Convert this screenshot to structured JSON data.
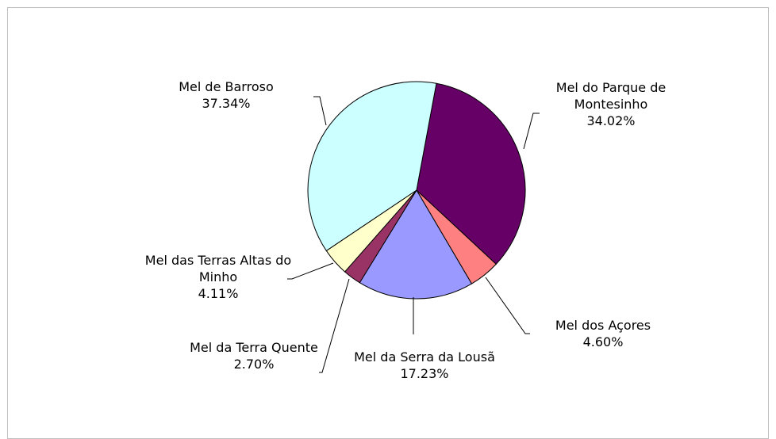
{
  "chart_data": {
    "type": "pie",
    "categories": [
      "Mel do Parque de Montesinho",
      "Mel dos Açores",
      "Mel da Serra da Lousã",
      "Mel da Terra Quente",
      "Mel das Terras Altas do Minho",
      "Mel de Barroso"
    ],
    "values": [
      34.02,
      4.6,
      17.23,
      2.7,
      4.11,
      37.34
    ],
    "value_labels": [
      "34.02%",
      "4.60%",
      "17.23%",
      "2.70%",
      "4.11%",
      "37.34%"
    ],
    "colors": [
      "#660066",
      "#ff8080",
      "#9999ff",
      "#993366",
      "#ffffcc",
      "#ccffff"
    ]
  }
}
